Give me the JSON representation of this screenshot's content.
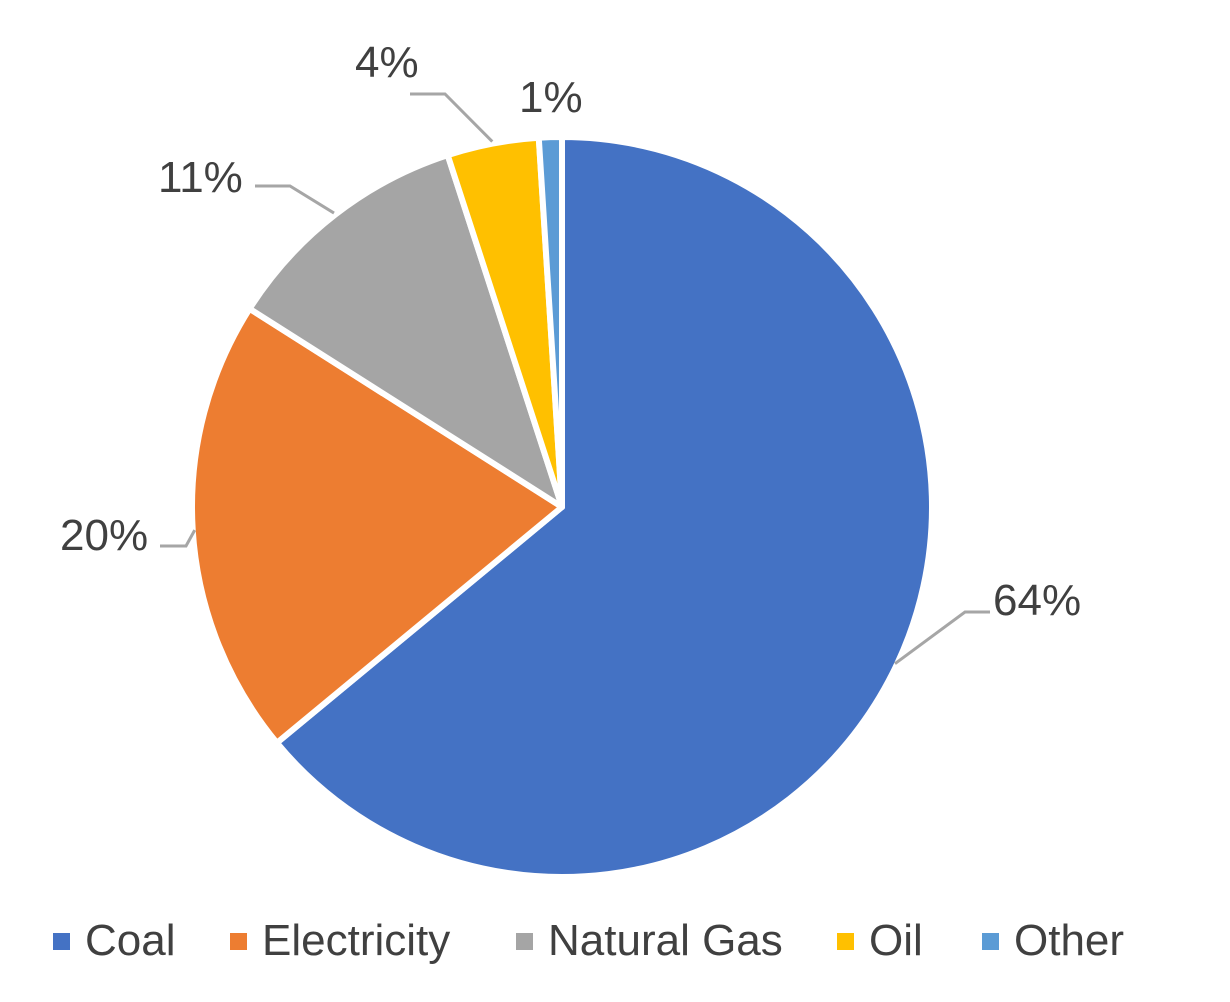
{
  "chart_data": {
    "type": "pie",
    "title": "",
    "categories": [
      "Coal",
      "Electricity",
      "Natural Gas",
      "Oil",
      "Other"
    ],
    "values": [
      64,
      20,
      11,
      4,
      1
    ],
    "data_labels": [
      "64%",
      "20%",
      "11%",
      "4%",
      "1%"
    ],
    "colors": [
      "#4472C4",
      "#ED7D31",
      "#A5A5A5",
      "#FFC000",
      "#5B9BD5"
    ],
    "start_angle": "12 o'clock",
    "direction": "clockwise",
    "legend": {
      "position": "bottom",
      "entries": [
        "Coal",
        "Electricity",
        "Natural Gas",
        "Oil",
        "Other"
      ]
    }
  }
}
